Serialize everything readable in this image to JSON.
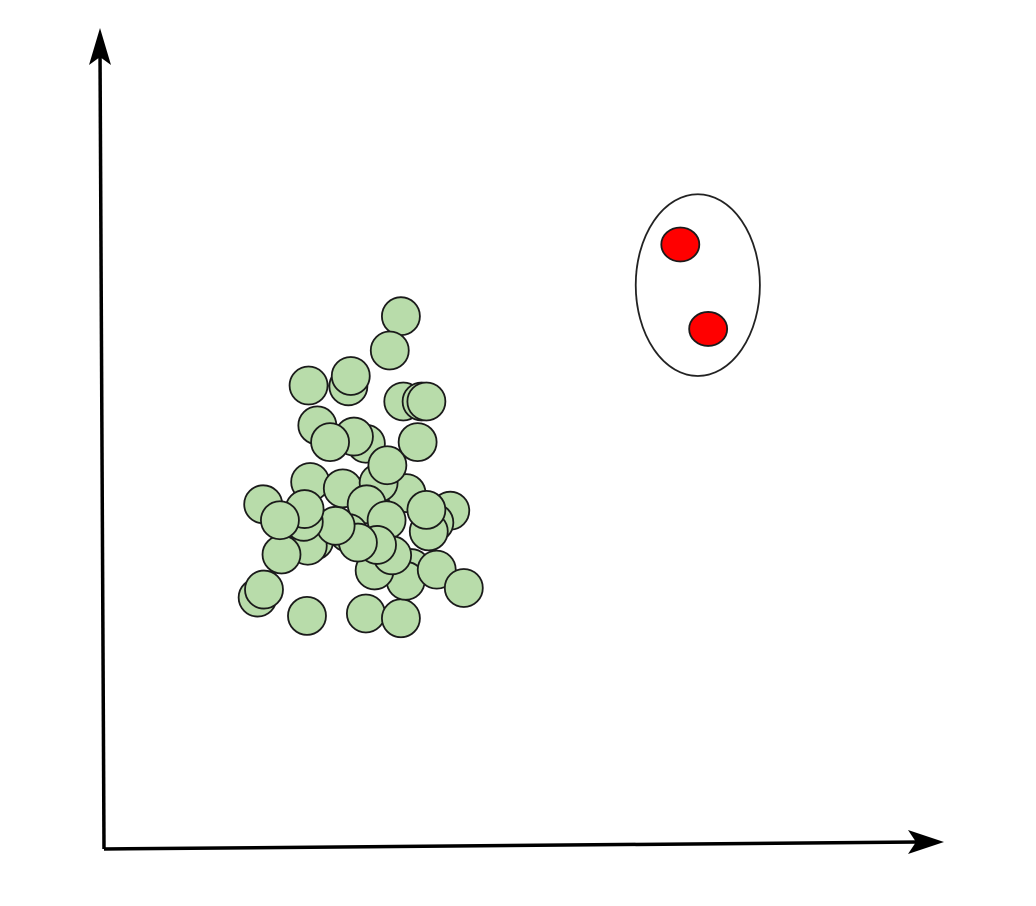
{
  "colors": {
    "normal_fill": "#b8dcaa",
    "anomaly_fill": "#ff0000",
    "outline": "#1a1a1a",
    "background": "#ffffff"
  },
  "chart_data": {
    "type": "scatter",
    "title": "",
    "xlabel": "",
    "ylabel": "",
    "xlim": [
      0,
      100
    ],
    "ylim": [
      0,
      100
    ],
    "grid": false,
    "tick_labels": false,
    "series": [
      {
        "color": "#b8dcaa",
        "points": [
          [
            37.3,
            66.6
          ],
          [
            25.7,
            57.9
          ],
          [
            26.8,
            52.9
          ],
          [
            25.9,
            45.8
          ],
          [
            30.0,
            45.0
          ],
          [
            30.7,
            57.8
          ],
          [
            31.0,
            59.1
          ],
          [
            32.9,
            50.6
          ],
          [
            31.4,
            51.5
          ],
          [
            28.4,
            50.8
          ],
          [
            35.9,
            62.3
          ],
          [
            37.6,
            55.9
          ],
          [
            39.9,
            55.9
          ],
          [
            40.5,
            55.9
          ],
          [
            39.4,
            50.8
          ],
          [
            43.5,
            42.2
          ],
          [
            38.0,
            44.4
          ],
          [
            34.5,
            45.7
          ],
          [
            35.6,
            47.9
          ],
          [
            33.0,
            43.0
          ],
          [
            35.5,
            41.0
          ],
          [
            20.0,
            43.0
          ],
          [
            26.4,
            38.4
          ],
          [
            25.6,
            37.8
          ],
          [
            22.3,
            36.7
          ],
          [
            19.3,
            31.3
          ],
          [
            25.5,
            29.0
          ],
          [
            32.9,
            29.3
          ],
          [
            37.3,
            28.7
          ],
          [
            38.1,
            34.0
          ],
          [
            38.6,
            35.0
          ],
          [
            37.9,
            33.4
          ],
          [
            41.8,
            34.8
          ],
          [
            41.5,
            40.7
          ],
          [
            40.8,
            39.6
          ],
          [
            40.5,
            42.3
          ],
          [
            45.2,
            32.5
          ],
          [
            30.7,
            39.4
          ],
          [
            20.1,
            32.3
          ],
          [
            34.0,
            34.7
          ],
          [
            36.2,
            36.6
          ],
          [
            34.3,
            37.9
          ],
          [
            31.9,
            38.2
          ],
          [
            29.1,
            40.3
          ],
          [
            25.1,
            40.8
          ],
          [
            25.2,
            42.4
          ],
          [
            22.1,
            41.0
          ]
        ]
      },
      {
        "color": "#ff0000",
        "points": [
          [
            72.4,
            75.6
          ],
          [
            75.9,
            65.0
          ]
        ]
      }
    ],
    "annotations": [
      {
        "shape": "ellipse",
        "encloses_series": 1,
        "center": [
          74.6,
          70.5
        ],
        "radius": [
          7.8,
          11.4
        ]
      }
    ]
  }
}
